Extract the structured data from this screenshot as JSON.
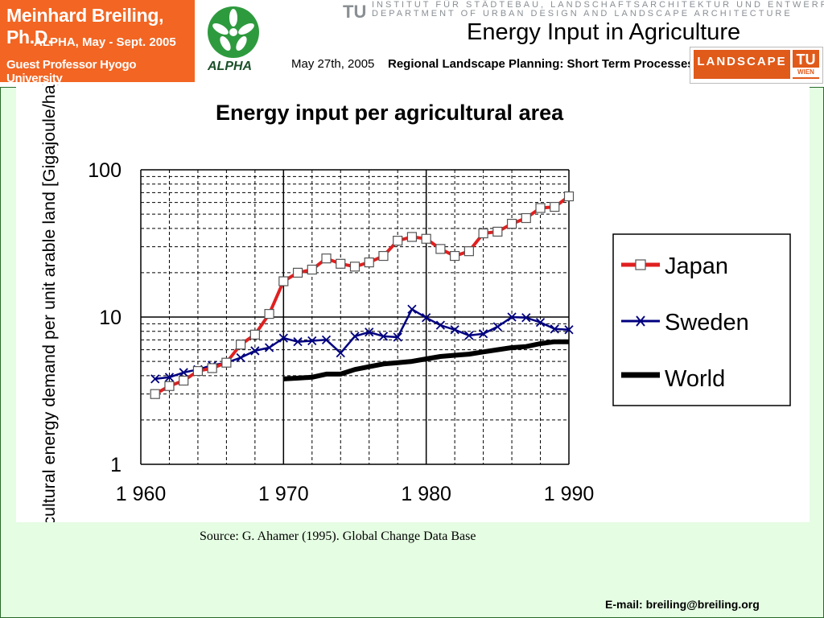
{
  "header": {
    "badge_line1": "Meinhard Breiling, Ph.D.",
    "badge_line2": "ALPHA, May - Sept. 2005",
    "badge_line3": "Guest Professor Hyogo University",
    "alpha_logo_text": "ALPHA",
    "tu_mark": "TU",
    "institute_line1": "INSTITUT FÜR STÄDTEBAU, LANDSCHAFTSARCHITEKTUR UND ENTWERFEN",
    "institute_line2": "DEPARTMENT OF URBAN DESIGN AND LANDSCAPE ARCHITECTURE",
    "slide_title": "Energy Input in Agriculture",
    "date": "May 27th, 2005",
    "course": "Regional Landscape Planning: Short Term Processes",
    "landscape_logo": "LANDSCAPE",
    "tu_logo": "TU",
    "tu_logo_sub": "WIEN"
  },
  "colors": {
    "badge": "#f26522",
    "content_bg": "#e5fde3",
    "japan": "#e02020",
    "sweden": "#000080",
    "world": "#000000"
  },
  "chart_data": {
    "type": "line",
    "title": "Energy input per agricultural area",
    "ylabel": "agricultural energy demand per unit arable land [Gigajoule/ha]",
    "xlabel": "",
    "y_scale": "log",
    "ylim": [
      1,
      100
    ],
    "xlim": [
      1960,
      1990
    ],
    "x_ticks": [
      "1 960",
      "1 970",
      "1 980",
      "1 990"
    ],
    "y_ticks": [
      "1",
      "10",
      "100"
    ],
    "legend_position": "right",
    "series": [
      {
        "name": "Japan",
        "marker": "square",
        "x": [
          1961,
          1962,
          1963,
          1964,
          1965,
          1966,
          1967,
          1968,
          1969,
          1970,
          1971,
          1972,
          1973,
          1974,
          1975,
          1976,
          1977,
          1978,
          1979,
          1980,
          1981,
          1982,
          1983,
          1984,
          1985,
          1986,
          1987,
          1988,
          1989,
          1990
        ],
        "values": [
          3.0,
          3.4,
          3.7,
          4.3,
          4.5,
          4.9,
          6.5,
          7.6,
          10.5,
          17.5,
          20,
          21,
          25,
          23,
          22,
          23.5,
          26,
          33,
          35,
          34,
          29,
          26,
          28,
          37,
          38,
          43,
          47,
          55,
          56,
          66
        ]
      },
      {
        "name": "Sweden",
        "marker": "x",
        "x": [
          1961,
          1962,
          1963,
          1964,
          1965,
          1966,
          1967,
          1968,
          1969,
          1970,
          1971,
          1972,
          1973,
          1974,
          1975,
          1976,
          1977,
          1978,
          1979,
          1980,
          1981,
          1982,
          1983,
          1984,
          1985,
          1986,
          1987,
          1988,
          1989,
          1990
        ],
        "values": [
          3.8,
          3.9,
          4.2,
          4.4,
          4.7,
          4.9,
          5.3,
          5.9,
          6.2,
          7.2,
          6.8,
          6.9,
          7.0,
          5.7,
          7.4,
          7.9,
          7.4,
          7.3,
          11.3,
          9.9,
          8.8,
          8.2,
          7.5,
          7.7,
          8.6,
          10.0,
          9.9,
          9.2,
          8.3,
          8.2
        ]
      },
      {
        "name": "World",
        "marker": "none",
        "x": [
          1970,
          1971,
          1972,
          1973,
          1974,
          1975,
          1976,
          1977,
          1978,
          1979,
          1980,
          1981,
          1982,
          1983,
          1984,
          1985,
          1986,
          1987,
          1988,
          1989,
          1990
        ],
        "values": [
          3.8,
          3.85,
          3.9,
          4.1,
          4.1,
          4.4,
          4.6,
          4.8,
          4.9,
          5.0,
          5.2,
          5.4,
          5.5,
          5.6,
          5.8,
          6.0,
          6.2,
          6.3,
          6.6,
          6.8,
          6.8
        ]
      }
    ]
  },
  "source": "Source: G. Ahamer (1995). Global Change Data Base",
  "email": "E-mail: breiling@breiling.org"
}
